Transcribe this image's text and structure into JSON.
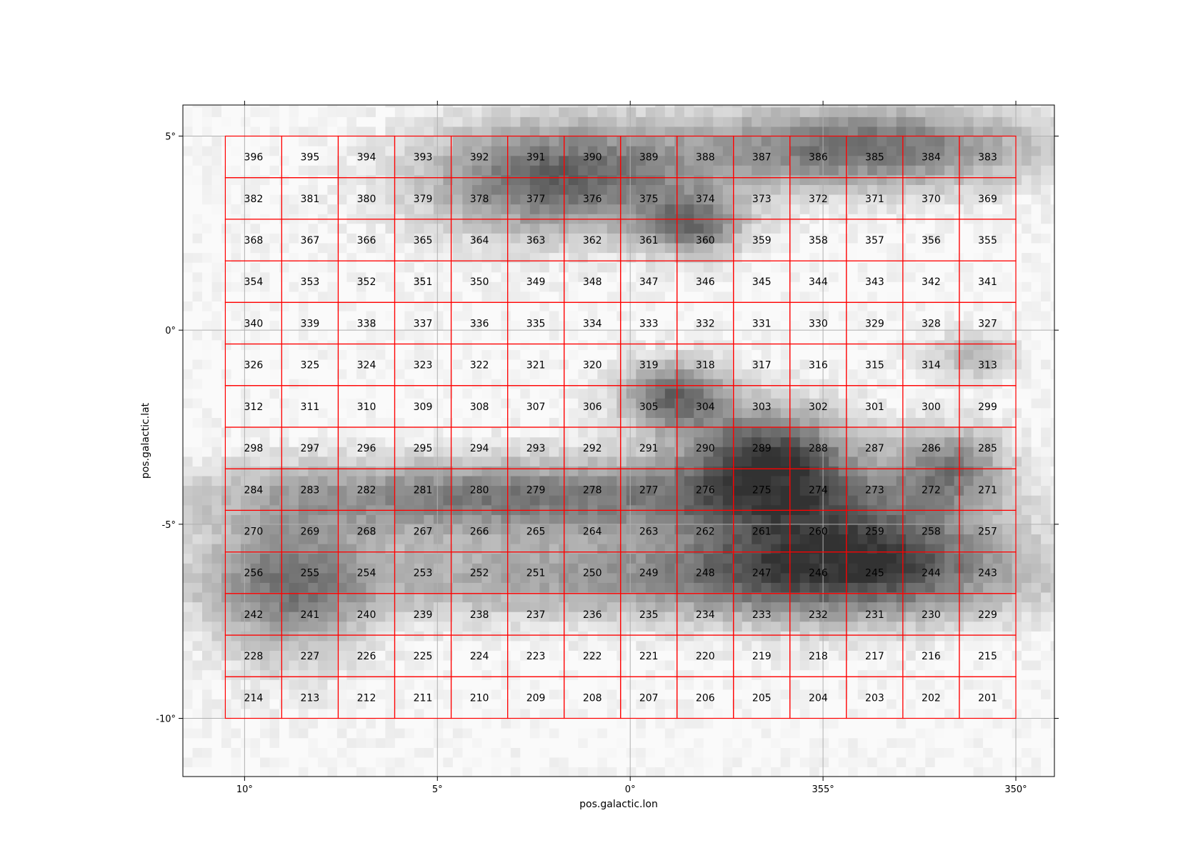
{
  "chart_data": {
    "type": "heatmap",
    "title": "",
    "xlabel": "pos.galactic.lon",
    "ylabel": "pos.galactic.lat",
    "x_ticks": [
      "10°",
      "5°",
      "0°",
      "355°",
      "350°"
    ],
    "y_ticks": [
      "5°",
      "0°",
      "-5°",
      "-10°"
    ],
    "xlim": [
      11.6,
      -11.0
    ],
    "ylim": [
      -11.5,
      5.8
    ],
    "grid": true,
    "background": "grayscale extinction map (dark = high extinction)",
    "overlay": {
      "type": "survey field tiling",
      "rows": 14,
      "cols": 14,
      "first_field": 201,
      "last_field": 396,
      "numbering": "row-major, increasing from bottom-right (201) toward top-left (396)",
      "lon_range": [
        10.5,
        -10.0
      ],
      "lat_range": [
        -10.0,
        5.0
      ]
    },
    "field_ids": [
      [
        396,
        395,
        394,
        393,
        392,
        391,
        390,
        389,
        388,
        387,
        386,
        385,
        384,
        383
      ],
      [
        382,
        381,
        380,
        379,
        378,
        377,
        376,
        375,
        374,
        373,
        372,
        371,
        370,
        369
      ],
      [
        368,
        367,
        366,
        365,
        364,
        363,
        362,
        361,
        360,
        359,
        358,
        357,
        356,
        355
      ],
      [
        354,
        353,
        352,
        351,
        350,
        349,
        348,
        347,
        346,
        345,
        344,
        343,
        342,
        341
      ],
      [
        340,
        339,
        338,
        337,
        336,
        335,
        334,
        333,
        332,
        331,
        330,
        329,
        328,
        327
      ],
      [
        326,
        325,
        324,
        323,
        322,
        321,
        320,
        319,
        318,
        317,
        316,
        315,
        314,
        313
      ],
      [
        312,
        311,
        310,
        309,
        308,
        307,
        306,
        305,
        304,
        303,
        302,
        301,
        300,
        299
      ],
      [
        298,
        297,
        296,
        295,
        294,
        293,
        292,
        291,
        290,
        289,
        288,
        287,
        286,
        285
      ],
      [
        284,
        283,
        282,
        281,
        280,
        279,
        278,
        277,
        276,
        275,
        274,
        273,
        272,
        271
      ],
      [
        270,
        269,
        268,
        267,
        266,
        265,
        264,
        263,
        262,
        261,
        260,
        259,
        258,
        257
      ],
      [
        256,
        255,
        254,
        253,
        252,
        251,
        250,
        249,
        248,
        247,
        246,
        245,
        244,
        243
      ],
      [
        242,
        241,
        240,
        239,
        238,
        237,
        236,
        235,
        234,
        233,
        232,
        231,
        230,
        229
      ],
      [
        228,
        227,
        226,
        225,
        224,
        223,
        222,
        221,
        220,
        219,
        218,
        217,
        216,
        215
      ],
      [
        214,
        213,
        212,
        211,
        210,
        209,
        208,
        207,
        206,
        205,
        204,
        203,
        202,
        201
      ]
    ],
    "colors": {
      "outline": "#ff0000",
      "grid": "#b0b0b0",
      "map_low": "#ffffff",
      "map_high": "#2a2a2a"
    }
  }
}
